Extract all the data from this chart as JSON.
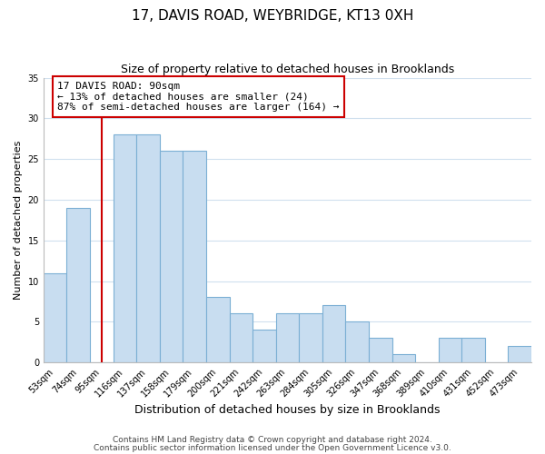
{
  "title1": "17, DAVIS ROAD, WEYBRIDGE, KT13 0XH",
  "title2": "Size of property relative to detached houses in Brooklands",
  "xlabel": "Distribution of detached houses by size in Brooklands",
  "ylabel": "Number of detached properties",
  "bin_labels": [
    "53sqm",
    "74sqm",
    "95sqm",
    "116sqm",
    "137sqm",
    "158sqm",
    "179sqm",
    "200sqm",
    "221sqm",
    "242sqm",
    "263sqm",
    "284sqm",
    "305sqm",
    "326sqm",
    "347sqm",
    "368sqm",
    "389sqm",
    "410sqm",
    "431sqm",
    "452sqm",
    "473sqm"
  ],
  "bar_values": [
    11,
    19,
    0,
    28,
    28,
    26,
    26,
    8,
    6,
    4,
    6,
    6,
    7,
    5,
    3,
    1,
    0,
    3,
    3,
    0,
    2
  ],
  "bar_color": "#c8ddf0",
  "bar_edge_color": "#7bafd4",
  "reference_line_x": 2,
  "reference_line_color": "#cc0000",
  "annotation_text": "17 DAVIS ROAD: 90sqm\n← 13% of detached houses are smaller (24)\n87% of semi-detached houses are larger (164) →",
  "annotation_box_edgecolor": "#cc0000",
  "ylim": [
    0,
    35
  ],
  "yticks": [
    0,
    5,
    10,
    15,
    20,
    25,
    30,
    35
  ],
  "footer1": "Contains HM Land Registry data © Crown copyright and database right 2024.",
  "footer2": "Contains public sector information licensed under the Open Government Licence v3.0.",
  "grid_color": "#d0e0ee",
  "title1_fontsize": 11,
  "title2_fontsize": 9,
  "ylabel_fontsize": 8,
  "xlabel_fontsize": 9,
  "tick_fontsize": 7,
  "annotation_fontsize": 8
}
